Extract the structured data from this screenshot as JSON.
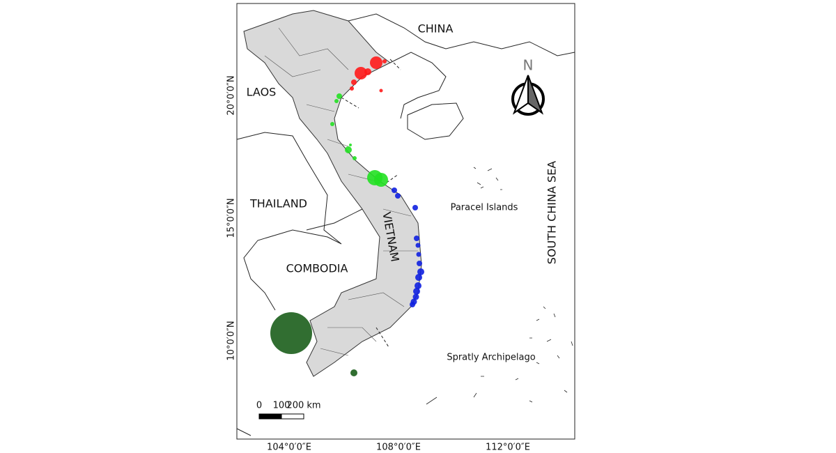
{
  "labels": {
    "china": "CHINA",
    "laos": "LAOS",
    "thailand": "THAILAND",
    "cambodia": "COMBODIA",
    "vietnam": "VIETNAM",
    "sea": "SOUTH CHINA SEA",
    "paracel": "Paracel Islands",
    "spratly": "Spratly Archipelago"
  },
  "latitude_labels": [
    "20°0′0″N",
    "15°0′0″N",
    "10°0′0″N"
  ],
  "longitude_labels": [
    "104°0′0″E",
    "108°0′0″E",
    "112°0′0″E"
  ],
  "scale_bar": [
    "0",
    "100",
    "200 km"
  ],
  "north": "N"
}
